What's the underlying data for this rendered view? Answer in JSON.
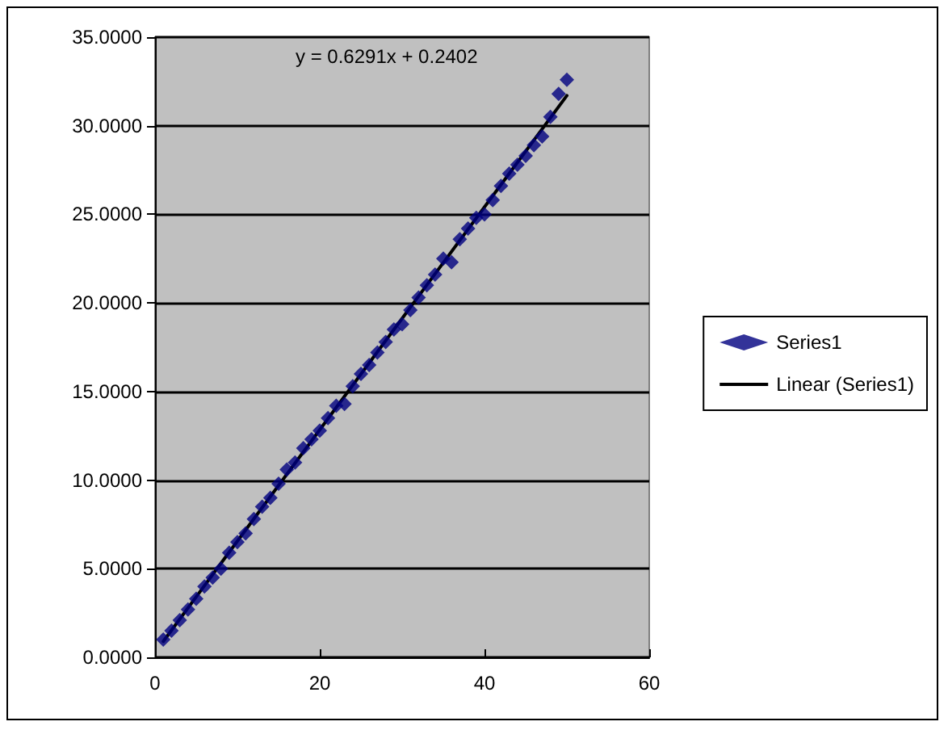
{
  "chart_data": {
    "type": "scatter",
    "annotations": [
      "y = 0.6291x + 0.2402"
    ],
    "series": [
      {
        "name": "Series1",
        "color": "#000080",
        "marker": "diamond",
        "x": [
          1,
          2,
          3,
          4,
          5,
          6,
          7,
          8,
          9,
          10,
          11,
          12,
          13,
          14,
          15,
          16,
          17,
          18,
          19,
          20,
          21,
          22,
          23,
          24,
          25,
          26,
          27,
          28,
          29,
          30,
          31,
          32,
          33,
          34,
          35,
          36,
          37,
          38,
          39,
          40,
          41,
          42,
          43,
          44,
          45,
          46,
          47,
          48,
          49,
          50
        ],
        "values": [
          1.0,
          1.5,
          2.1,
          2.7,
          3.3,
          4.0,
          4.5,
          5.0,
          5.9,
          6.5,
          7.0,
          7.8,
          8.5,
          9.0,
          9.8,
          10.6,
          11.0,
          11.8,
          12.3,
          12.8,
          13.5,
          14.2,
          14.3,
          15.3,
          16.0,
          16.5,
          17.2,
          17.8,
          18.5,
          18.8,
          19.6,
          20.3,
          21.0,
          21.6,
          22.5,
          22.3,
          23.6,
          24.2,
          24.8,
          25.0,
          25.8,
          26.6,
          27.3,
          27.8,
          28.3,
          28.9,
          29.4,
          30.5,
          31.8,
          32.6
        ]
      },
      {
        "name": "Linear (Series1)",
        "type": "line",
        "color": "#000000",
        "marker": "none",
        "line_style": "solid",
        "x": [
          1,
          50
        ],
        "values": [
          0.9,
          31.7
        ]
      }
    ],
    "xlim": [
      0,
      60
    ],
    "xticks": [
      0,
      20,
      40,
      60
    ],
    "ylim": [
      0,
      35
    ],
    "yticks": [
      {
        "value": 0,
        "label": "0.0000"
      },
      {
        "value": 5,
        "label": "5.0000"
      },
      {
        "value": 10,
        "label": "10.0000"
      },
      {
        "value": 15,
        "label": "15.0000"
      },
      {
        "value": 20,
        "label": "20.0000"
      },
      {
        "value": 25,
        "label": "25.0000"
      },
      {
        "value": 30,
        "label": "30.0000"
      },
      {
        "value": 35,
        "label": "35.0000"
      }
    ],
    "grid": "y",
    "legend": "right"
  }
}
